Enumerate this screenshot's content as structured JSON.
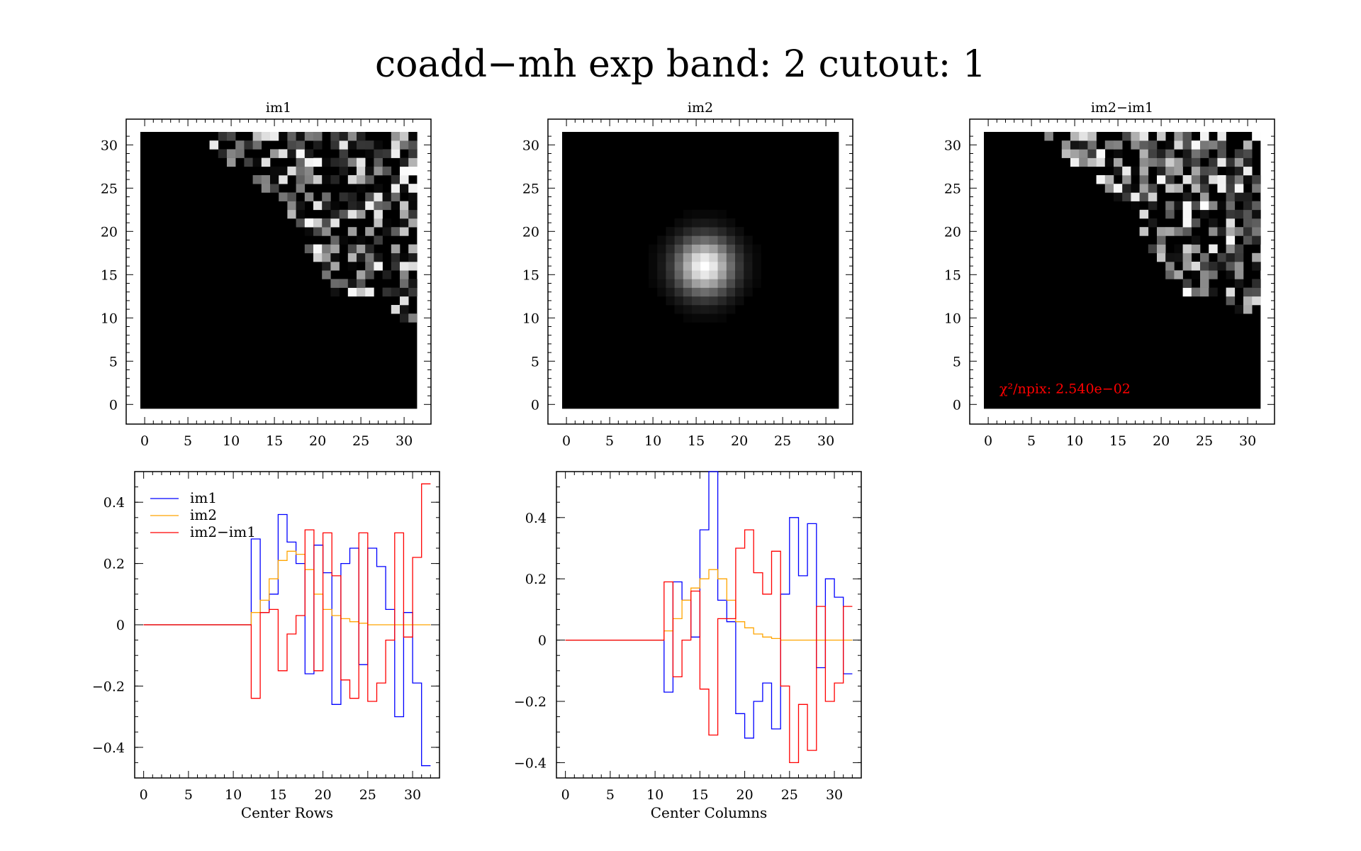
{
  "title": "coadd−mh exp band: 2 cutout: 1",
  "colors": {
    "im1": "#0000ff",
    "im2": "#ffa500",
    "diff": "#ff0000",
    "chi": "#ff0000"
  },
  "images": [
    {
      "title": "im1",
      "xticks": [
        "0",
        "5",
        "10",
        "15",
        "20",
        "25",
        "30"
      ],
      "yticks": [
        "0",
        "5",
        "10",
        "15",
        "20",
        "25",
        "30"
      ],
      "pattern": "noise-upper-right"
    },
    {
      "title": "im2",
      "xticks": [
        "0",
        "5",
        "10",
        "15",
        "20",
        "25",
        "30"
      ],
      "yticks": [
        "0",
        "5",
        "10",
        "15",
        "20",
        "25",
        "30"
      ],
      "pattern": "gaussian",
      "center": [
        16,
        16
      ]
    },
    {
      "title": "im2−im1",
      "xticks": [
        "0",
        "5",
        "10",
        "15",
        "20",
        "25",
        "30"
      ],
      "yticks": [
        "0",
        "5",
        "10",
        "15",
        "20",
        "25",
        "30"
      ],
      "pattern": "noise-upper-right",
      "annotation": "χ²/npix: 2.540e−02"
    }
  ],
  "chart_data": [
    {
      "type": "line",
      "step": true,
      "xlabel": "Center Rows",
      "ylabel": "",
      "xlim": [
        -1,
        33
      ],
      "ylim": [
        -0.5,
        0.5
      ],
      "xticks": [
        0,
        5,
        10,
        15,
        20,
        25,
        30
      ],
      "xtick_labels": [
        "0",
        "5",
        "10",
        "15",
        "20",
        "25",
        "30"
      ],
      "yticks": [
        -0.4,
        -0.2,
        0,
        0.2,
        0.4
      ],
      "ytick_labels": [
        "−0.4",
        "−0.2",
        "0",
        "0.2",
        "0.4"
      ],
      "legend": "top-left",
      "x": [
        0,
        1,
        2,
        3,
        4,
        5,
        6,
        7,
        8,
        9,
        10,
        11,
        12,
        13,
        14,
        15,
        16,
        17,
        18,
        19,
        20,
        21,
        22,
        23,
        24,
        25,
        26,
        27,
        28,
        29,
        30,
        31,
        32
      ],
      "series": [
        {
          "name": "im1",
          "color": "#0000ff",
          "values": [
            0,
            0,
            0,
            0,
            0,
            0,
            0,
            0,
            0,
            0,
            0,
            0,
            0.28,
            0.04,
            0.1,
            0.36,
            0.27,
            0.2,
            -0.16,
            0.26,
            0.17,
            -0.26,
            0.2,
            0.25,
            -0.13,
            0.25,
            0.19,
            0.05,
            -0.3,
            0.04,
            -0.19,
            -0.46,
            -0.46
          ]
        },
        {
          "name": "im2",
          "color": "#ffa500",
          "values": [
            0,
            0,
            0,
            0,
            0,
            0,
            0,
            0,
            0,
            0,
            0,
            0,
            0.04,
            0.08,
            0.15,
            0.21,
            0.24,
            0.23,
            0.18,
            0.1,
            0.05,
            0.03,
            0.02,
            0.01,
            0.005,
            0,
            0,
            0,
            0,
            0,
            0,
            0,
            0
          ]
        },
        {
          "name": "im2−im1",
          "color": "#ff0000",
          "values": [
            0,
            0,
            0,
            0,
            0,
            0,
            0,
            0,
            0,
            0,
            0,
            0,
            -0.24,
            0.04,
            0.05,
            -0.15,
            -0.03,
            0.03,
            0.31,
            -0.15,
            0.3,
            0.16,
            -0.18,
            -0.24,
            0.3,
            -0.25,
            -0.19,
            -0.05,
            0.3,
            -0.04,
            0.22,
            0.46,
            0.46
          ]
        }
      ]
    },
    {
      "type": "line",
      "step": true,
      "xlabel": "Center Columns",
      "ylabel": "",
      "xlim": [
        -1,
        33
      ],
      "ylim": [
        -0.45,
        0.55
      ],
      "xticks": [
        0,
        5,
        10,
        15,
        20,
        25,
        30
      ],
      "xtick_labels": [
        "0",
        "5",
        "10",
        "15",
        "20",
        "25",
        "30"
      ],
      "yticks": [
        -0.4,
        -0.2,
        0,
        0.2,
        0.4
      ],
      "ytick_labels": [
        "−0.4",
        "−0.2",
        "0",
        "0.2",
        "0.4"
      ],
      "x": [
        0,
        1,
        2,
        3,
        4,
        5,
        6,
        7,
        8,
        9,
        10,
        11,
        12,
        13,
        14,
        15,
        16,
        17,
        18,
        19,
        20,
        21,
        22,
        23,
        24,
        25,
        26,
        27,
        28,
        29,
        30,
        31,
        32
      ],
      "series": [
        {
          "name": "im1",
          "color": "#0000ff",
          "values": [
            0,
            0,
            0,
            0,
            0,
            0,
            0,
            0,
            0,
            0,
            0,
            -0.17,
            0.19,
            0.13,
            0.01,
            0.36,
            0.55,
            0.13,
            0.06,
            -0.24,
            -0.32,
            -0.2,
            -0.14,
            -0.29,
            0.15,
            0.4,
            0.21,
            0.38,
            -0.09,
            0.2,
            0.14,
            -0.11,
            -0.11
          ]
        },
        {
          "name": "im2",
          "color": "#ffa500",
          "values": [
            0,
            0,
            0,
            0,
            0,
            0,
            0,
            0,
            0,
            0,
            0,
            0.03,
            0.07,
            0.13,
            0.17,
            0.2,
            0.23,
            0.2,
            0.13,
            0.06,
            0.04,
            0.02,
            0.01,
            0.005,
            0,
            0,
            0,
            0,
            0,
            0,
            0,
            0,
            0
          ]
        },
        {
          "name": "im2−im1",
          "color": "#ff0000",
          "values": [
            0,
            0,
            0,
            0,
            0,
            0,
            0,
            0,
            0,
            0,
            0,
            0.19,
            -0.12,
            0,
            0.16,
            -0.16,
            -0.31,
            0.07,
            0.07,
            0.3,
            0.36,
            0.22,
            0.15,
            0.29,
            -0.15,
            -0.4,
            -0.21,
            -0.36,
            0.11,
            -0.2,
            -0.14,
            0.11,
            0.11
          ]
        }
      ]
    }
  ]
}
